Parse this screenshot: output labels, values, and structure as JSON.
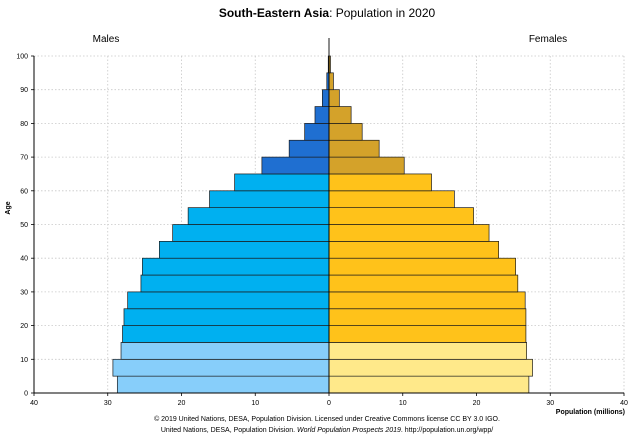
{
  "title": {
    "bold": "South-Eastern Asia",
    "rest": ": Population in 2020"
  },
  "labels": {
    "males": "Males",
    "females": "Females",
    "ylabel": "Age",
    "xlabel": "Population (millions)"
  },
  "credits": {
    "line1": "© 2019 United Nations, DESA, Population Division. Licensed under Creative Commons license CC BY 3.0 IGO.",
    "line2_a": "United Nations, DESA, Population Division. ",
    "line2_b": "World Population Prospects 2019",
    "line2_c": ". http://population.un.org/wpp/"
  },
  "colors": {
    "male_young": "#87cefa",
    "male_working": "#00b0f0",
    "male_old": "#1f6fd1",
    "female_young": "#ffe98a",
    "female_working": "#ffc21a",
    "female_old": "#d4a22a",
    "grid": "#c8c8c8",
    "axis": "#000000"
  },
  "chart_data": {
    "type": "bar",
    "orientation": "horizontal-population-pyramid",
    "age_groups": [
      "0-4",
      "5-9",
      "10-14",
      "15-19",
      "20-24",
      "25-29",
      "30-34",
      "35-39",
      "40-44",
      "45-49",
      "50-54",
      "55-59",
      "60-64",
      "65-69",
      "70-74",
      "75-79",
      "80-84",
      "85-89",
      "90-94",
      "95-99",
      "100+"
    ],
    "series": [
      {
        "name": "Males",
        "values": [
          28.7,
          29.3,
          28.2,
          28.0,
          27.8,
          27.3,
          25.5,
          25.3,
          23.0,
          21.2,
          19.1,
          16.2,
          12.8,
          9.1,
          5.4,
          3.3,
          1.9,
          0.9,
          0.3,
          0.1,
          0.0
        ]
      },
      {
        "name": "Females",
        "values": [
          27.1,
          27.6,
          26.8,
          26.7,
          26.7,
          26.6,
          25.6,
          25.3,
          23.0,
          21.7,
          19.6,
          17.0,
          13.9,
          10.2,
          6.8,
          4.5,
          3.0,
          1.4,
          0.6,
          0.2,
          0.0
        ]
      }
    ],
    "xlim": [
      -40,
      40
    ],
    "ylim": [
      0,
      100
    ],
    "xticks": [
      "40",
      "30",
      "20",
      "10",
      "0",
      "10",
      "20",
      "30",
      "40"
    ],
    "yticks": [
      "0",
      "10",
      "20",
      "30",
      "40",
      "50",
      "60",
      "70",
      "80",
      "90",
      "100"
    ],
    "grid": true
  }
}
